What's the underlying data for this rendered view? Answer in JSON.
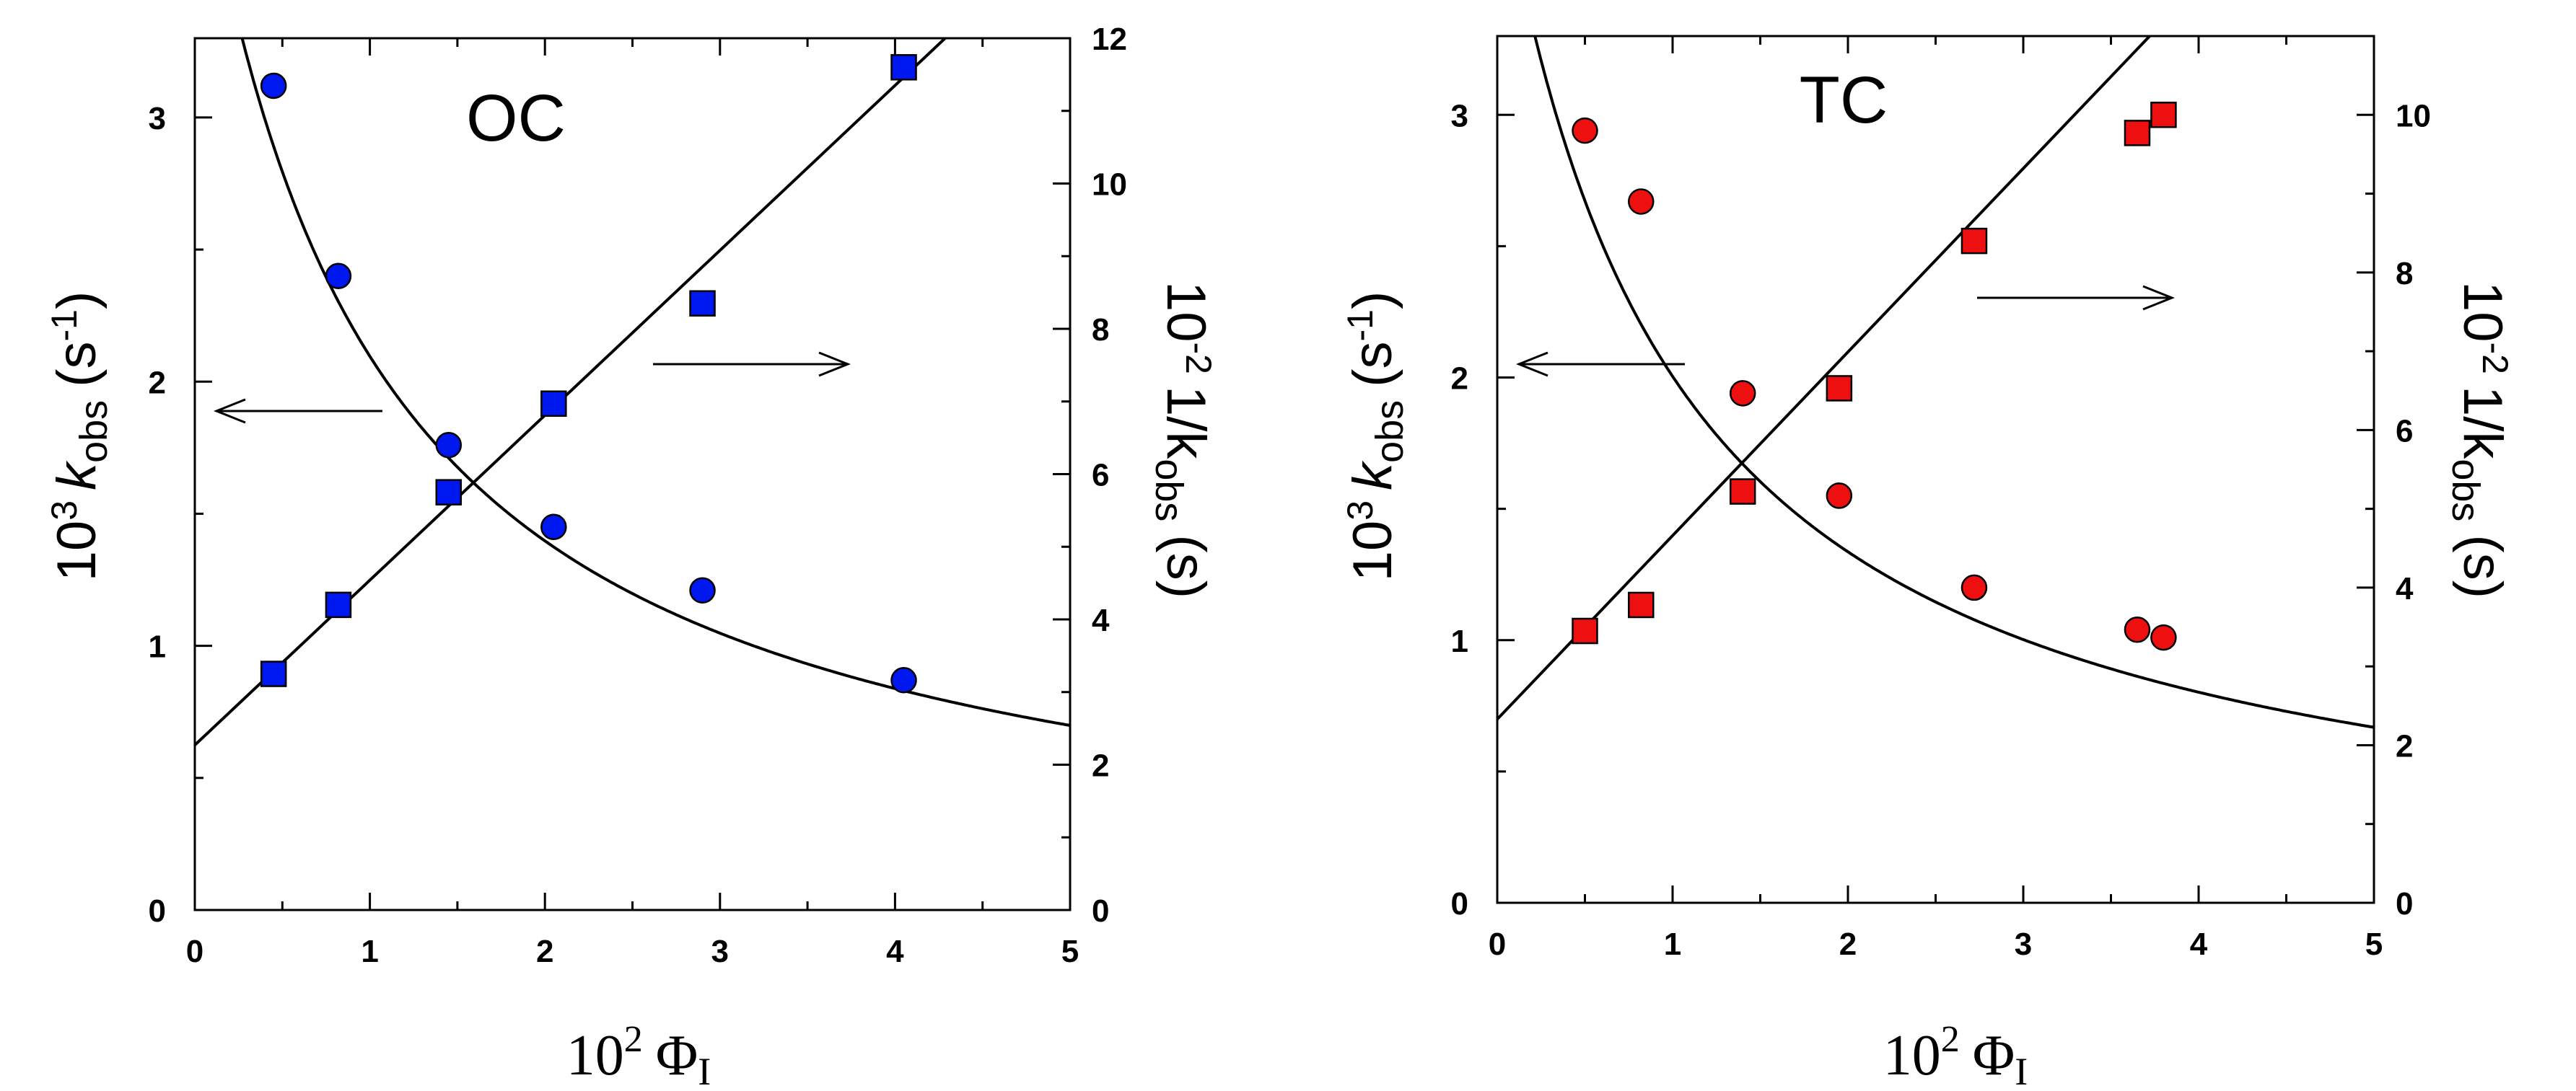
{
  "chart_data": [
    {
      "type": "scatter",
      "title": "OC",
      "xlabel": {
        "base": "10",
        "exp": "2",
        "symbol": "Φ",
        "sub": "I"
      },
      "ylabel_left": {
        "base": "10",
        "exp": "3",
        "var": "k",
        "sub": "obs",
        "unit_open": "(s",
        "unit_exp": "-1",
        "unit_close": ")"
      },
      "ylabel_right": {
        "base": "10",
        "exp": "-2",
        "var": "1/k",
        "sub": "obs",
        "unit": "(s)"
      },
      "xlim": [
        0,
        5
      ],
      "ylim_left": [
        0,
        3.3
      ],
      "ylim_right": [
        0,
        12
      ],
      "xticks": [
        "0",
        "1",
        "2",
        "3",
        "4",
        "5"
      ],
      "yticks_left": [
        "0",
        "1",
        "2",
        "3"
      ],
      "yticks_right": [
        "0",
        "2",
        "4",
        "6",
        "8",
        "10",
        "12"
      ],
      "marker_color": "#0018f0",
      "series": [
        {
          "name": "k_obs",
          "axis": "left",
          "marker": "circle",
          "x": [
            0.45,
            0.82,
            1.45,
            2.05,
            2.9,
            4.05
          ],
          "y": [
            3.12,
            2.4,
            1.76,
            1.45,
            1.21,
            0.87
          ]
        },
        {
          "name": "1/k_obs",
          "axis": "right",
          "marker": "square",
          "x": [
            0.45,
            0.82,
            1.45,
            2.05,
            2.9,
            4.05
          ],
          "y": [
            3.25,
            4.2,
            5.75,
            6.97,
            8.35,
            11.6
          ]
        }
      ],
      "fits": {
        "hyperbola": {
          "a": 2.27,
          "b": 0.0125
        },
        "line": {
          "intercept": 2.27,
          "slope": 2.27
        }
      },
      "arrows": [
        "left",
        "right"
      ]
    },
    {
      "type": "scatter",
      "title": "TC",
      "xlabel": {
        "base": "10",
        "exp": "2",
        "symbol": "Φ",
        "sub": "I"
      },
      "ylabel_left": {
        "base": "10",
        "exp": "3",
        "var": "k",
        "sub": "obs",
        "unit_open": "(s",
        "unit_exp": "-1",
        "unit_close": ")"
      },
      "ylabel_right": {
        "base": "10",
        "exp": "-2",
        "var": "1/k",
        "sub": "obs",
        "unit": "(s)"
      },
      "xlim": [
        0,
        5
      ],
      "ylim_left": [
        0,
        3.3
      ],
      "ylim_right": [
        0,
        11
      ],
      "xticks": [
        "0",
        "1",
        "2",
        "3",
        "4",
        "5"
      ],
      "yticks_left": [
        "0",
        "1",
        "2",
        "3"
      ],
      "yticks_right": [
        "0",
        "2",
        "4",
        "6",
        "8",
        "10"
      ],
      "marker_color": "#ee1010",
      "series": [
        {
          "name": "k_obs",
          "axis": "left",
          "marker": "circle",
          "x": [
            0.5,
            0.82,
            1.4,
            1.95,
            2.72,
            3.65,
            3.8
          ],
          "y": [
            2.94,
            2.67,
            1.94,
            1.55,
            1.2,
            1.04,
            1.01
          ]
        },
        {
          "name": "1/k_obs",
          "axis": "right",
          "marker": "square",
          "x": [
            0.5,
            0.82,
            1.4,
            1.95,
            2.72,
            3.65,
            3.8
          ],
          "y": [
            3.45,
            3.78,
            5.22,
            6.53,
            8.4,
            9.77,
            10.0
          ]
        }
      ],
      "fits": {
        "hyperbola": {
          "a": 2.27,
          "b": 0.01455
        },
        "line": {
          "intercept": 2.27,
          "slope": 2.27
        }
      },
      "arrows": [
        "left",
        "right"
      ]
    }
  ]
}
